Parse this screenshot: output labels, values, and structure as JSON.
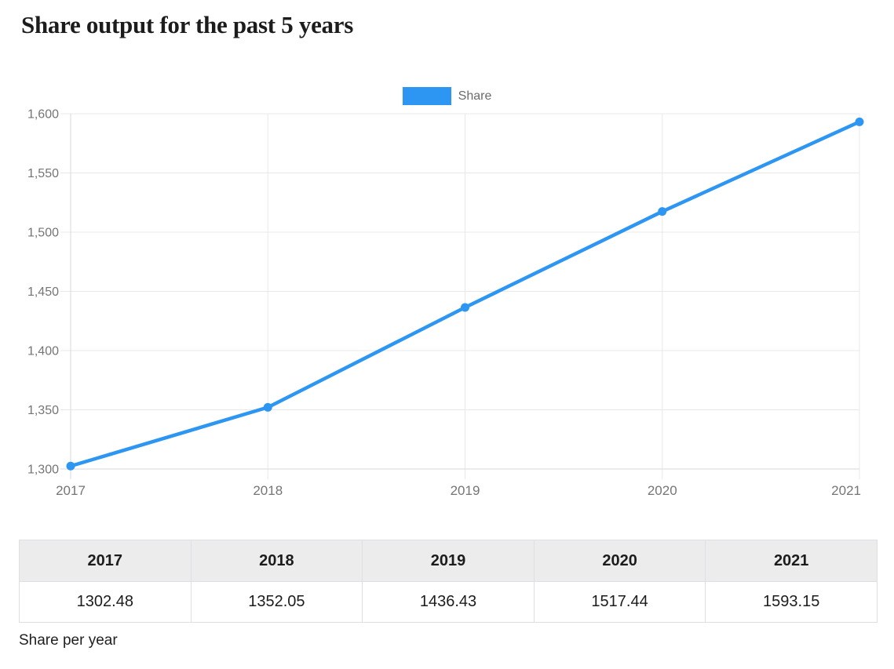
{
  "page": {
    "title": "Share output for the past 5 years",
    "caption": "Share per year"
  },
  "legend": {
    "label": "Share",
    "swatch_color": "#2d96f3"
  },
  "chart_data": {
    "type": "line",
    "title": "Share output for the past 5 years",
    "categories": [
      "2017",
      "2018",
      "2019",
      "2020",
      "2021"
    ],
    "series": [
      {
        "name": "Share",
        "values": [
          1302.48,
          1352.05,
          1436.43,
          1517.44,
          1593.15
        ]
      }
    ],
    "xlabel": "",
    "ylabel": "",
    "ylim": [
      1300,
      1600
    ],
    "y_ticks": [
      1300,
      1350,
      1400,
      1450,
      1500,
      1550,
      1600
    ],
    "y_tick_labels": [
      "1,300",
      "1,350",
      "1,400",
      "1,450",
      "1,500",
      "1,550",
      "1,600"
    ],
    "grid": true,
    "legend_position": "top-center",
    "line_color": "#2d96f3",
    "grid_color": "#e8e8e8",
    "axis_color": "#d9d9d9",
    "tick_text_color": "#757575"
  },
  "table": {
    "headers": [
      "2017",
      "2018",
      "2019",
      "2020",
      "2021"
    ],
    "values": [
      "1302.48",
      "1352.05",
      "1436.43",
      "1517.44",
      "1593.15"
    ]
  }
}
